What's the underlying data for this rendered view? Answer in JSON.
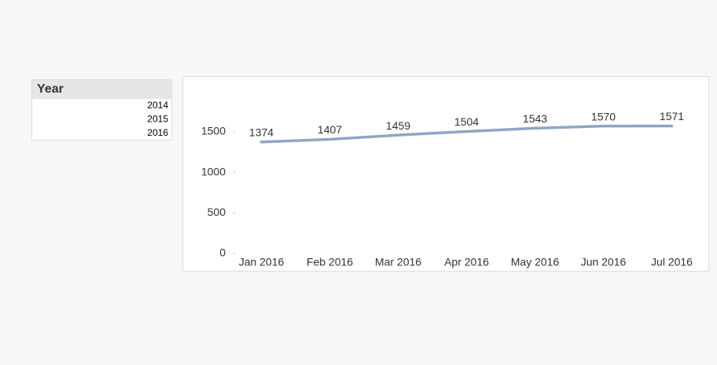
{
  "listbox": {
    "title": "Year",
    "items": [
      "2014",
      "2015",
      "2016"
    ]
  },
  "chart_data": {
    "type": "line",
    "categories": [
      "Jan 2016",
      "Feb 2016",
      "Mar 2016",
      "Apr 2016",
      "May 2016",
      "Jun 2016",
      "Jul 2016"
    ],
    "values": [
      1374,
      1407,
      1459,
      1504,
      1543,
      1570,
      1571
    ],
    "color": "#8ea5c6",
    "ylim": [
      0,
      1750
    ],
    "yticks": [
      0,
      500,
      1000,
      1500
    ]
  }
}
